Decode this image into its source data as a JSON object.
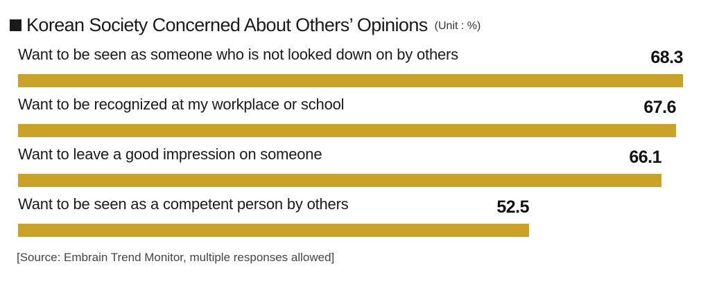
{
  "header": {
    "title": "Korean Society Concerned About Others’ Opinions",
    "unit": "(Unit : %)"
  },
  "footer": {
    "source": "[Source: Embrain Trend Monitor, multiple responses allowed]"
  },
  "colors": {
    "bar": "#c9a227",
    "text": "#1a1a1a"
  },
  "icons": {
    "title_marker": "black-square-icon"
  },
  "chart_data": {
    "type": "bar",
    "orientation": "horizontal",
    "title": "Korean Society Concerned About Others’ Opinions",
    "unit": "%",
    "categories": [
      "Want to be seen as someone who is not looked down on by others",
      "Want to be recognized at my workplace or school",
      "Want to leave a good impression on someone",
      "Want to be seen as a competent person by others"
    ],
    "values": [
      68.3,
      67.6,
      66.1,
      52.5
    ],
    "value_labels": [
      "68.3",
      "67.6",
      "66.1",
      "52.5"
    ],
    "xlim": [
      0,
      68.3
    ],
    "grid": false,
    "legend": "none"
  }
}
